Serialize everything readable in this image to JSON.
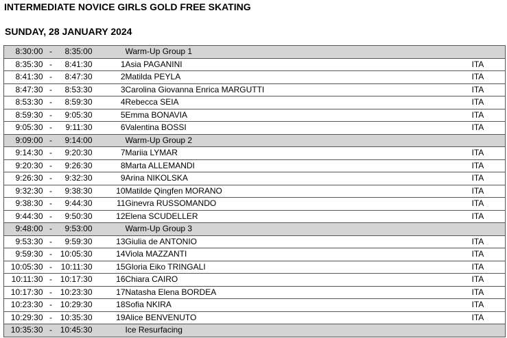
{
  "title": "INTERMEDIATE NOVICE GIRLS GOLD FREE SKATING",
  "date": "SUNDAY, 28 JANUARY 2024",
  "rows": [
    {
      "type": "group",
      "start": "8:30:00",
      "sep": "-",
      "end": "8:35:00",
      "num": "",
      "name": "Warm-Up Group 1",
      "nat": ""
    },
    {
      "type": "skater",
      "start": "8:35:30",
      "sep": "-",
      "end": "8:41:30",
      "num": "1",
      "name": "Asia PAGANINI",
      "nat": "ITA"
    },
    {
      "type": "skater",
      "start": "8:41:30",
      "sep": "-",
      "end": "8:47:30",
      "num": "2",
      "name": "Matilda PEYLA",
      "nat": "ITA"
    },
    {
      "type": "skater",
      "start": "8:47:30",
      "sep": "-",
      "end": "8:53:30",
      "num": "3",
      "name": "Carolina Giovanna Enrica MARGUTTI",
      "nat": "ITA"
    },
    {
      "type": "skater",
      "start": "8:53:30",
      "sep": "-",
      "end": "8:59:30",
      "num": "4",
      "name": "Rebecca SEIA",
      "nat": "ITA"
    },
    {
      "type": "skater",
      "start": "8:59:30",
      "sep": "-",
      "end": "9:05:30",
      "num": "5",
      "name": "Emma BONAVIA",
      "nat": "ITA"
    },
    {
      "type": "skater",
      "start": "9:05:30",
      "sep": "-",
      "end": "9:11:30",
      "num": "6",
      "name": "Valentina BOSSI",
      "nat": "ITA"
    },
    {
      "type": "group",
      "start": "9:09:00",
      "sep": "-",
      "end": "9:14:00",
      "num": "",
      "name": "Warm-Up Group 2",
      "nat": ""
    },
    {
      "type": "skater",
      "start": "9:14:30",
      "sep": "-",
      "end": "9:20:30",
      "num": "7",
      "name": "Mariia LYMAR",
      "nat": "ITA"
    },
    {
      "type": "skater",
      "start": "9:20:30",
      "sep": "-",
      "end": "9:26:30",
      "num": "8",
      "name": "Marta ALLEMANDI",
      "nat": "ITA"
    },
    {
      "type": "skater",
      "start": "9:26:30",
      "sep": "-",
      "end": "9:32:30",
      "num": "9",
      "name": "Arina NIKOLSKA",
      "nat": "ITA"
    },
    {
      "type": "skater",
      "start": "9:32:30",
      "sep": "-",
      "end": "9:38:30",
      "num": "10",
      "name": "Matilde Qingfen MORANO",
      "nat": "ITA"
    },
    {
      "type": "skater",
      "start": "9:38:30",
      "sep": "-",
      "end": "9:44:30",
      "num": "11",
      "name": "Ginevra RUSSOMANDO",
      "nat": "ITA"
    },
    {
      "type": "skater",
      "start": "9:44:30",
      "sep": "-",
      "end": "9:50:30",
      "num": "12",
      "name": "Elena SCUDELLER",
      "nat": "ITA"
    },
    {
      "type": "group",
      "start": "9:48:00",
      "sep": "-",
      "end": "9:53:00",
      "num": "",
      "name": "Warm-Up Group 3",
      "nat": ""
    },
    {
      "type": "skater",
      "start": "9:53:30",
      "sep": "-",
      "end": "9:59:30",
      "num": "13",
      "name": "Giulia de ANTONIO",
      "nat": "ITA"
    },
    {
      "type": "skater",
      "start": "9:59:30",
      "sep": "-",
      "end": "10:05:30",
      "num": "14",
      "name": "Viola MAZZANTI",
      "nat": "ITA"
    },
    {
      "type": "skater",
      "start": "10:05:30",
      "sep": "-",
      "end": "10:11:30",
      "num": "15",
      "name": "Gloria Eiko TRINGALI",
      "nat": "ITA"
    },
    {
      "type": "skater",
      "start": "10:11:30",
      "sep": "-",
      "end": "10:17:30",
      "num": "16",
      "name": "Chiara CAIRO",
      "nat": "ITA"
    },
    {
      "type": "skater",
      "start": "10:17:30",
      "sep": "-",
      "end": "10:23:30",
      "num": "17",
      "name": "Natasha Elena BORDEA",
      "nat": "ITA"
    },
    {
      "type": "skater",
      "start": "10:23:30",
      "sep": "-",
      "end": "10:29:30",
      "num": "18",
      "name": "Sofia NKIRA",
      "nat": "ITA"
    },
    {
      "type": "skater",
      "start": "10:29:30",
      "sep": "-",
      "end": "10:35:30",
      "num": "19",
      "name": "Alice BENVENUTO",
      "nat": "ITA"
    },
    {
      "type": "group",
      "start": "10:35:30",
      "sep": "-",
      "end": "10:45:30",
      "num": "",
      "name": "Ice Resurfacing",
      "nat": ""
    }
  ]
}
